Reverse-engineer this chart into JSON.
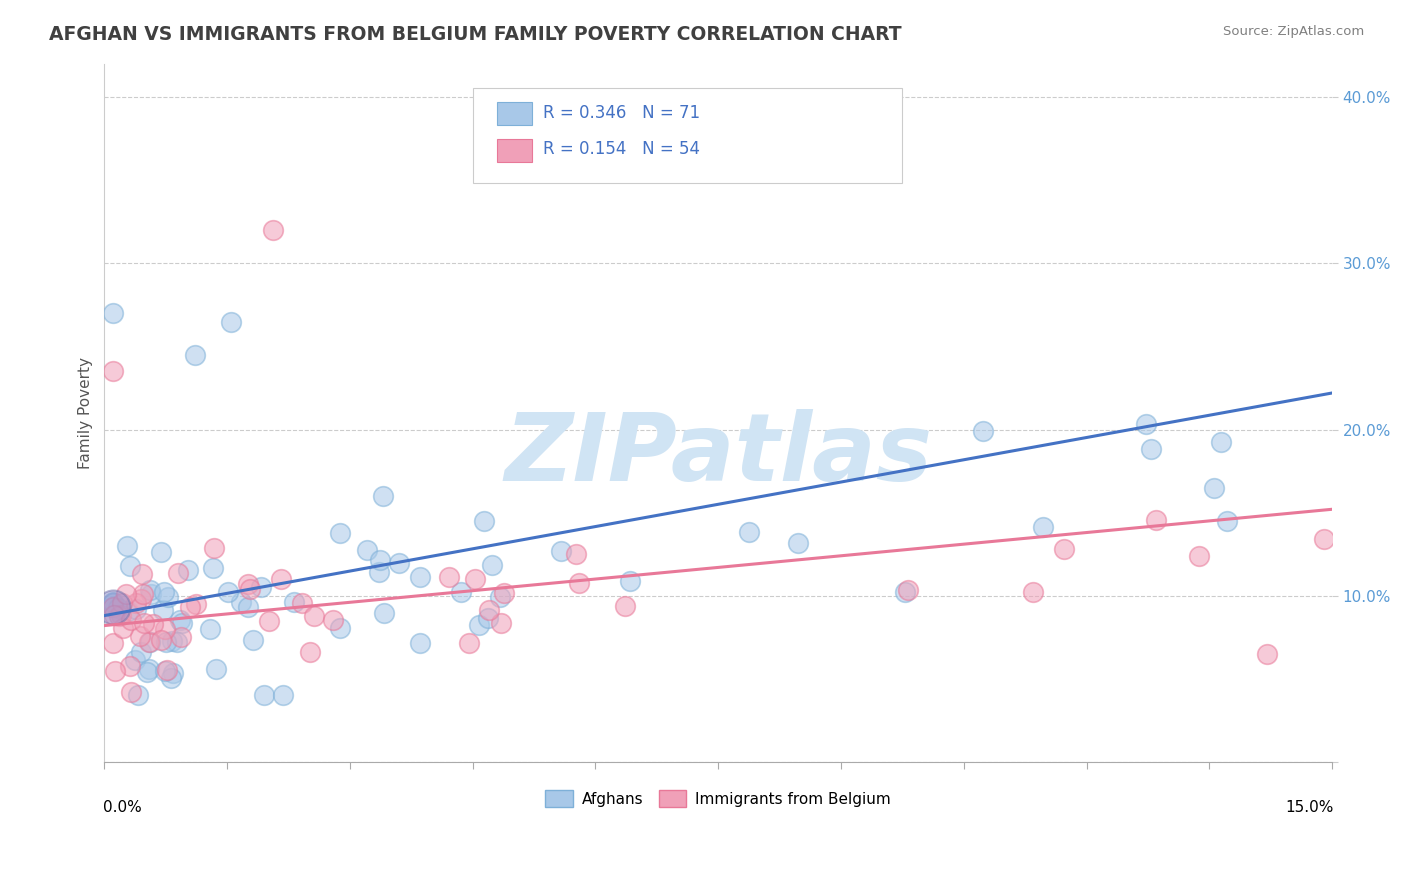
{
  "title": "AFGHAN VS IMMIGRANTS FROM BELGIUM FAMILY POVERTY CORRELATION CHART",
  "source": "Source: ZipAtlas.com",
  "ylabel": "Family Poverty",
  "xlim": [
    0.0,
    0.15
  ],
  "ylim": [
    0.0,
    0.42
  ],
  "blue_color": "#A8C8E8",
  "pink_color": "#F0A0B8",
  "blue_edge": "#7EB0D8",
  "pink_edge": "#E87898",
  "trend_blue": "#4472C4",
  "trend_pink": "#E87898",
  "legend_text_color": "#4472C4",
  "legend_label_color": "#333333",
  "watermark": "ZIPatlas",
  "watermark_color": "#D0E4F4",
  "title_color": "#404040",
  "source_color": "#808080",
  "ytick_color": "#5B9BD5",
  "af_trend_x": [
    0.0,
    0.15
  ],
  "af_trend_y": [
    0.088,
    0.222
  ],
  "be_trend_x": [
    0.0,
    0.15
  ],
  "be_trend_y": [
    0.082,
    0.152
  ],
  "dot_size": 200,
  "dot_linewidth": 1.2,
  "dot_alpha": 0.55
}
